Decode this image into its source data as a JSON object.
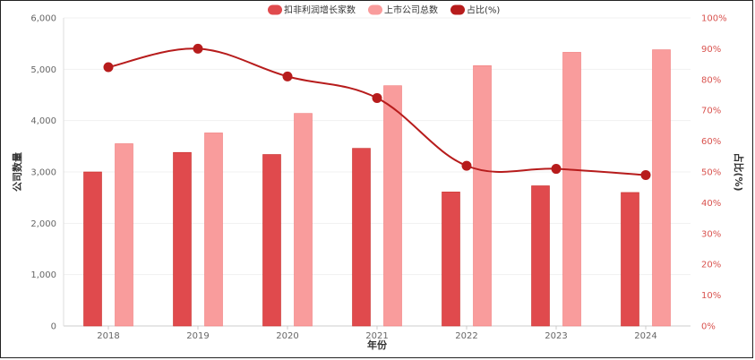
{
  "chart_data": {
    "type": "bar",
    "categories": [
      "2018",
      "2019",
      "2020",
      "2021",
      "2022",
      "2023",
      "2024"
    ],
    "series": [
      {
        "name": "扣非利润增长家数",
        "type": "bar",
        "axis": "left",
        "color": "#e04a4d",
        "values": [
          3000,
          3380,
          3340,
          3460,
          2610,
          2730,
          2600
        ]
      },
      {
        "name": "上市公司总数",
        "type": "bar",
        "axis": "left",
        "color": "#f99c9c",
        "values": [
          3550,
          3760,
          4140,
          4680,
          5070,
          5330,
          5380
        ]
      },
      {
        "name": "占比(%)",
        "type": "line",
        "axis": "right",
        "color": "#b71c1c",
        "values": [
          84,
          90,
          81,
          74,
          52,
          51,
          49
        ]
      }
    ],
    "xlabel": "年份",
    "ylabel": "公司数量",
    "y2label": "占比(%)",
    "ylim": [
      0,
      6000
    ],
    "y2lim": [
      0,
      100
    ],
    "yticks": [
      "0",
      "1,000",
      "2,000",
      "3,000",
      "4,000",
      "5,000",
      "6,000"
    ],
    "y2ticks": [
      "0%",
      "10%",
      "20%",
      "30%",
      "40%",
      "50%",
      "60%",
      "70%",
      "80%",
      "90%",
      "100%"
    ],
    "legend_position": "top-center",
    "grid": true
  }
}
